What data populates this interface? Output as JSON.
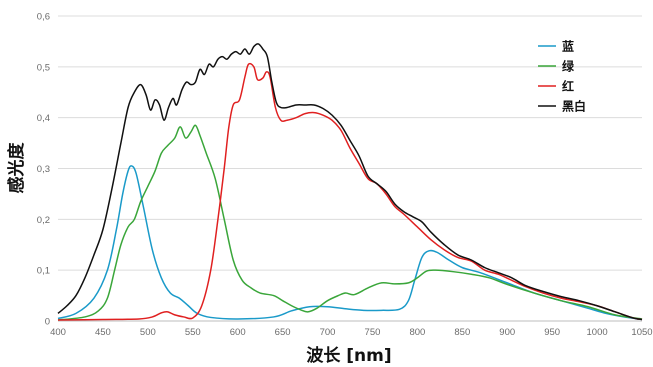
{
  "chart_data": {
    "type": "line",
    "title": "",
    "xlabel": "波长 [nm]",
    "ylabel": "感光度",
    "xlim": [
      400,
      1050
    ],
    "ylim": [
      0,
      0.6
    ],
    "x_ticks": [
      "400",
      "450",
      "500",
      "550",
      "600",
      "650",
      "700",
      "750",
      "800",
      "850",
      "900",
      "950",
      "1000",
      "1050"
    ],
    "y_ticks": [
      "0",
      "0,1",
      "0,2",
      "0,3",
      "0,4",
      "0,5",
      "0,6"
    ],
    "grid": "horizontal",
    "legend_position": "top-right",
    "series": [
      {
        "name": "蓝",
        "color": "#1a9ac9",
        "points": [
          [
            400,
            0.005
          ],
          [
            420,
            0.015
          ],
          [
            440,
            0.045
          ],
          [
            455,
            0.1
          ],
          [
            465,
            0.18
          ],
          [
            472,
            0.25
          ],
          [
            478,
            0.295
          ],
          [
            482,
            0.305
          ],
          [
            487,
            0.29
          ],
          [
            495,
            0.225
          ],
          [
            505,
            0.14
          ],
          [
            515,
            0.085
          ],
          [
            525,
            0.055
          ],
          [
            535,
            0.045
          ],
          [
            545,
            0.03
          ],
          [
            555,
            0.015
          ],
          [
            570,
            0.007
          ],
          [
            600,
            0.004
          ],
          [
            640,
            0.008
          ],
          [
            660,
            0.02
          ],
          [
            680,
            0.028
          ],
          [
            700,
            0.028
          ],
          [
            720,
            0.024
          ],
          [
            740,
            0.021
          ],
          [
            760,
            0.021
          ],
          [
            780,
            0.023
          ],
          [
            790,
            0.04
          ],
          [
            797,
            0.08
          ],
          [
            805,
            0.125
          ],
          [
            813,
            0.138
          ],
          [
            822,
            0.135
          ],
          [
            835,
            0.12
          ],
          [
            850,
            0.105
          ],
          [
            870,
            0.095
          ],
          [
            900,
            0.075
          ],
          [
            930,
            0.055
          ],
          [
            960,
            0.04
          ],
          [
            990,
            0.025
          ],
          [
            1010,
            0.015
          ],
          [
            1030,
            0.008
          ],
          [
            1050,
            0.003
          ]
        ]
      },
      {
        "name": "绿",
        "color": "#3aa63a",
        "points": [
          [
            400,
            0.002
          ],
          [
            430,
            0.008
          ],
          [
            445,
            0.02
          ],
          [
            455,
            0.045
          ],
          [
            463,
            0.1
          ],
          [
            470,
            0.15
          ],
          [
            478,
            0.185
          ],
          [
            485,
            0.2
          ],
          [
            492,
            0.235
          ],
          [
            500,
            0.265
          ],
          [
            508,
            0.295
          ],
          [
            515,
            0.33
          ],
          [
            522,
            0.345
          ],
          [
            530,
            0.36
          ],
          [
            536,
            0.382
          ],
          [
            542,
            0.36
          ],
          [
            548,
            0.372
          ],
          [
            553,
            0.385
          ],
          [
            558,
            0.365
          ],
          [
            565,
            0.33
          ],
          [
            575,
            0.28
          ],
          [
            585,
            0.2
          ],
          [
            595,
            0.12
          ],
          [
            605,
            0.08
          ],
          [
            615,
            0.065
          ],
          [
            625,
            0.055
          ],
          [
            640,
            0.05
          ],
          [
            650,
            0.04
          ],
          [
            660,
            0.03
          ],
          [
            670,
            0.022
          ],
          [
            678,
            0.018
          ],
          [
            688,
            0.025
          ],
          [
            700,
            0.04
          ],
          [
            712,
            0.05
          ],
          [
            720,
            0.055
          ],
          [
            730,
            0.052
          ],
          [
            745,
            0.065
          ],
          [
            760,
            0.075
          ],
          [
            775,
            0.073
          ],
          [
            790,
            0.075
          ],
          [
            800,
            0.085
          ],
          [
            810,
            0.098
          ],
          [
            820,
            0.1
          ],
          [
            840,
            0.097
          ],
          [
            860,
            0.092
          ],
          [
            880,
            0.085
          ],
          [
            900,
            0.072
          ],
          [
            930,
            0.055
          ],
          [
            960,
            0.04
          ],
          [
            990,
            0.028
          ],
          [
            1020,
            0.012
          ],
          [
            1050,
            0.004
          ]
        ]
      },
      {
        "name": "红",
        "color": "#e02020",
        "points": [
          [
            400,
            0.002
          ],
          [
            450,
            0.003
          ],
          [
            490,
            0.004
          ],
          [
            505,
            0.008
          ],
          [
            515,
            0.016
          ],
          [
            522,
            0.018
          ],
          [
            530,
            0.012
          ],
          [
            540,
            0.008
          ],
          [
            550,
            0.006
          ],
          [
            560,
            0.03
          ],
          [
            570,
            0.1
          ],
          [
            578,
            0.2
          ],
          [
            585,
            0.3
          ],
          [
            590,
            0.38
          ],
          [
            595,
            0.425
          ],
          [
            602,
            0.435
          ],
          [
            608,
            0.48
          ],
          [
            612,
            0.505
          ],
          [
            618,
            0.5
          ],
          [
            622,
            0.475
          ],
          [
            628,
            0.478
          ],
          [
            632,
            0.49
          ],
          [
            636,
            0.48
          ],
          [
            642,
            0.42
          ],
          [
            648,
            0.395
          ],
          [
            655,
            0.395
          ],
          [
            665,
            0.4
          ],
          [
            675,
            0.408
          ],
          [
            685,
            0.41
          ],
          [
            695,
            0.405
          ],
          [
            705,
            0.395
          ],
          [
            715,
            0.375
          ],
          [
            725,
            0.34
          ],
          [
            735,
            0.31
          ],
          [
            745,
            0.28
          ],
          [
            755,
            0.27
          ],
          [
            765,
            0.25
          ],
          [
            775,
            0.225
          ],
          [
            785,
            0.21
          ],
          [
            800,
            0.185
          ],
          [
            815,
            0.16
          ],
          [
            830,
            0.14
          ],
          [
            845,
            0.125
          ],
          [
            860,
            0.118
          ],
          [
            875,
            0.1
          ],
          [
            890,
            0.092
          ],
          [
            905,
            0.08
          ],
          [
            920,
            0.068
          ],
          [
            940,
            0.055
          ],
          [
            960,
            0.045
          ],
          [
            980,
            0.038
          ],
          [
            1000,
            0.03
          ],
          [
            1020,
            0.018
          ],
          [
            1040,
            0.006
          ],
          [
            1050,
            0.003
          ]
        ]
      },
      {
        "name": "黑白",
        "color": "#111111",
        "points": [
          [
            400,
            0.015
          ],
          [
            410,
            0.03
          ],
          [
            420,
            0.05
          ],
          [
            430,
            0.085
          ],
          [
            440,
            0.13
          ],
          [
            450,
            0.18
          ],
          [
            460,
            0.26
          ],
          [
            470,
            0.35
          ],
          [
            478,
            0.42
          ],
          [
            485,
            0.45
          ],
          [
            492,
            0.465
          ],
          [
            498,
            0.445
          ],
          [
            503,
            0.415
          ],
          [
            508,
            0.435
          ],
          [
            513,
            0.425
          ],
          [
            518,
            0.395
          ],
          [
            523,
            0.42
          ],
          [
            528,
            0.438
          ],
          [
            532,
            0.425
          ],
          [
            538,
            0.455
          ],
          [
            543,
            0.47
          ],
          [
            548,
            0.465
          ],
          [
            553,
            0.47
          ],
          [
            558,
            0.495
          ],
          [
            563,
            0.485
          ],
          [
            568,
            0.505
          ],
          [
            573,
            0.5
          ],
          [
            578,
            0.515
          ],
          [
            583,
            0.52
          ],
          [
            588,
            0.515
          ],
          [
            593,
            0.525
          ],
          [
            598,
            0.53
          ],
          [
            603,
            0.525
          ],
          [
            608,
            0.535
          ],
          [
            613,
            0.525
          ],
          [
            618,
            0.54
          ],
          [
            623,
            0.545
          ],
          [
            628,
            0.535
          ],
          [
            633,
            0.52
          ],
          [
            638,
            0.47
          ],
          [
            643,
            0.43
          ],
          [
            648,
            0.42
          ],
          [
            655,
            0.42
          ],
          [
            665,
            0.425
          ],
          [
            675,
            0.425
          ],
          [
            685,
            0.425
          ],
          [
            695,
            0.418
          ],
          [
            705,
            0.405
          ],
          [
            715,
            0.385
          ],
          [
            725,
            0.355
          ],
          [
            735,
            0.325
          ],
          [
            745,
            0.285
          ],
          [
            755,
            0.27
          ],
          [
            765,
            0.255
          ],
          [
            775,
            0.23
          ],
          [
            785,
            0.215
          ],
          [
            795,
            0.205
          ],
          [
            805,
            0.195
          ],
          [
            815,
            0.175
          ],
          [
            830,
            0.15
          ],
          [
            845,
            0.13
          ],
          [
            860,
            0.12
          ],
          [
            875,
            0.105
          ],
          [
            890,
            0.095
          ],
          [
            905,
            0.085
          ],
          [
            920,
            0.07
          ],
          [
            940,
            0.058
          ],
          [
            960,
            0.048
          ],
          [
            980,
            0.04
          ],
          [
            1000,
            0.03
          ],
          [
            1020,
            0.018
          ],
          [
            1040,
            0.006
          ],
          [
            1050,
            0.003
          ]
        ]
      }
    ]
  }
}
